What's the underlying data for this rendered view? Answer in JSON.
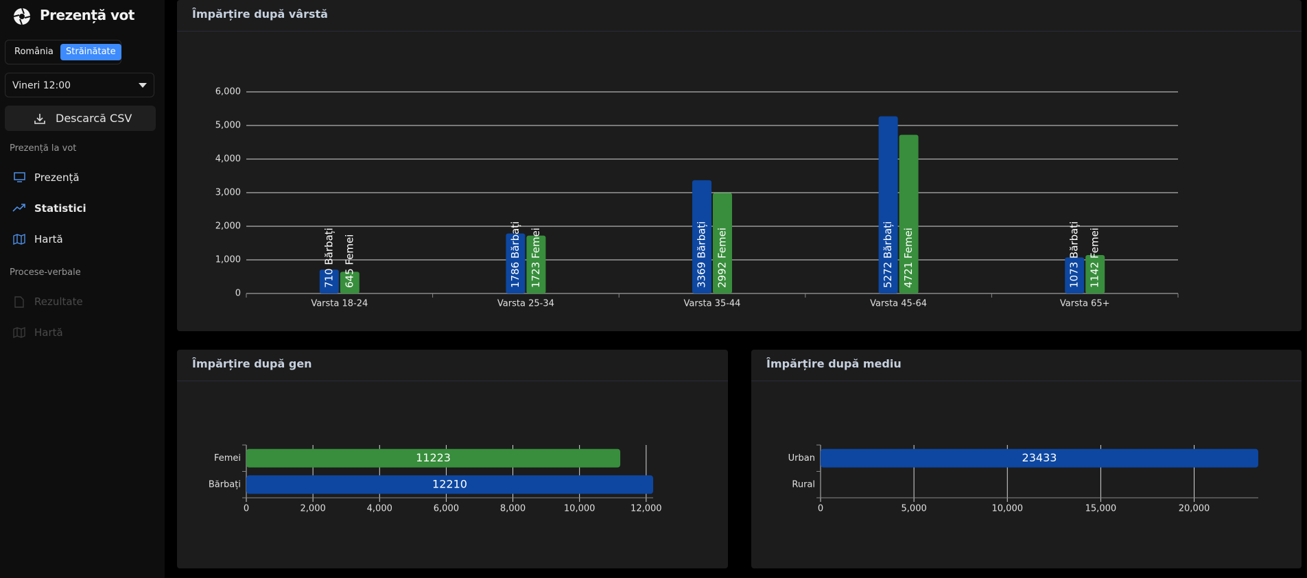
{
  "sidebar": {
    "title": "Prezență vot",
    "tabs": [
      "România",
      "Străinătate"
    ],
    "time": "Vineri 12:00",
    "download": "Descarcă CSV",
    "sections": [
      {
        "title": "Prezență la vot",
        "items": [
          "Prezență",
          "Statistici",
          "Hartă"
        ]
      },
      {
        "title": "Procese-verbale",
        "items": [
          "Rezultate",
          "Hartă"
        ]
      }
    ]
  },
  "chart_data": [
    {
      "type": "bar",
      "title": "Împărțire după vârstă",
      "categories": [
        "Varsta 18-24",
        "Varsta 25-34",
        "Varsta 35-44",
        "Varsta 45-64",
        "Varsta 65+"
      ],
      "series": [
        {
          "name": "Bărbați",
          "color": "#0d47a1",
          "values": [
            710,
            1786,
            3369,
            5272,
            1073
          ],
          "value_labels": [
            "710 Bărbați",
            "1786 Bărbați",
            "3369 Bărbați",
            "5272 Bărbați",
            "1073 Bărbați"
          ]
        },
        {
          "name": "Femei",
          "color": "#388e3c",
          "values": [
            645,
            1723,
            2992,
            4721,
            1142
          ],
          "value_labels": [
            "645 Femei",
            "1723 Femei",
            "2992 Femei",
            "4721 Femei",
            "1142 Femei"
          ]
        }
      ],
      "ylim": [
        0,
        6000
      ],
      "yticks": [
        0,
        {
          "value": 1000,
          "label": "1,000"
        },
        {
          "value": 2000,
          "label": "2,000"
        },
        {
          "value": 3000,
          "label": "3,000"
        },
        {
          "value": 4000,
          "label": "4,000"
        },
        {
          "value": 5000,
          "label": "5,000"
        },
        {
          "value": 6000,
          "label": "6,000"
        }
      ],
      "grid": true
    },
    {
      "type": "barh",
      "title": "Împărțire după gen",
      "categories": [
        "Femei",
        "Bărbați"
      ],
      "values": [
        11223,
        12210
      ],
      "colors": [
        "#388e3c",
        "#0d47a1"
      ],
      "xlim": [
        0,
        12210
      ],
      "xticks": [
        0,
        {
          "value": 2000,
          "label": "2,000"
        },
        {
          "value": 4000,
          "label": "4,000"
        },
        {
          "value": 6000,
          "label": "6,000"
        },
        {
          "value": 8000,
          "label": "8,000"
        },
        {
          "value": 10000,
          "label": "10,000"
        },
        {
          "value": 12000,
          "label": "12,000"
        }
      ],
      "grid": true
    },
    {
      "type": "barh",
      "title": "Împărțire după mediu",
      "categories": [
        "Urban",
        "Rural"
      ],
      "values": [
        23433,
        null
      ],
      "colors": [
        "#0d47a1",
        "#0d47a1"
      ],
      "xlim": [
        0,
        23433
      ],
      "xticks": [
        0,
        {
          "value": 5000,
          "label": "5,000"
        },
        {
          "value": 10000,
          "label": "10,000"
        },
        {
          "value": 15000,
          "label": "15,000"
        },
        {
          "value": 20000,
          "label": "20,000"
        }
      ],
      "grid": true
    }
  ]
}
